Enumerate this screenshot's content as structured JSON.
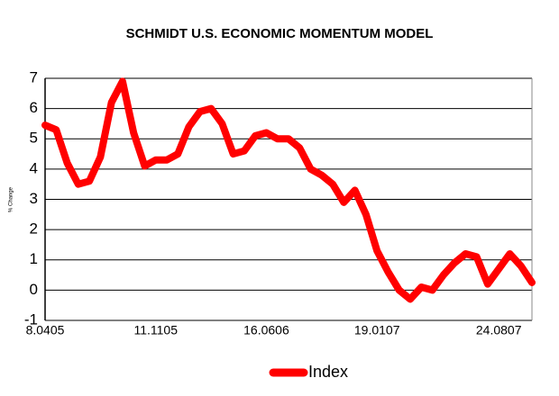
{
  "chart_data": {
    "type": "line",
    "title": "SCHMIDT U.S. ECONOMIC MOMENTUM MODEL",
    "y_label": "% Change",
    "categories": [
      "8.0405",
      null,
      null,
      null,
      null,
      null,
      null,
      null,
      null,
      null,
      "11.1105",
      null,
      null,
      null,
      null,
      null,
      null,
      null,
      null,
      null,
      "16.0606",
      null,
      null,
      null,
      null,
      null,
      null,
      null,
      null,
      null,
      "19.0107",
      null,
      null,
      null,
      null,
      null,
      null,
      null,
      null,
      null,
      null,
      "24.0807",
      null,
      null,
      null
    ],
    "series": [
      {
        "name": "Index",
        "color": "#ff0000",
        "values": [
          5.45,
          5.3,
          4.2,
          3.5,
          3.6,
          4.4,
          6.2,
          6.9,
          5.2,
          4.1,
          4.3,
          4.3,
          4.5,
          5.4,
          5.9,
          6.0,
          5.5,
          4.5,
          4.6,
          5.1,
          5.2,
          5.0,
          5.0,
          4.7,
          4.0,
          3.8,
          3.5,
          2.9,
          3.3,
          2.5,
          1.3,
          0.6,
          0.0,
          -0.3,
          0.1,
          0.0,
          0.5,
          0.9,
          1.2,
          1.1,
          0.2,
          0.7,
          1.2,
          0.8,
          0.25
        ]
      }
    ],
    "ylim": [
      -1,
      7
    ],
    "yticks": [
      -1,
      0,
      1,
      2,
      3,
      4,
      5,
      6,
      7
    ],
    "grid": true,
    "legend": "bottom"
  }
}
